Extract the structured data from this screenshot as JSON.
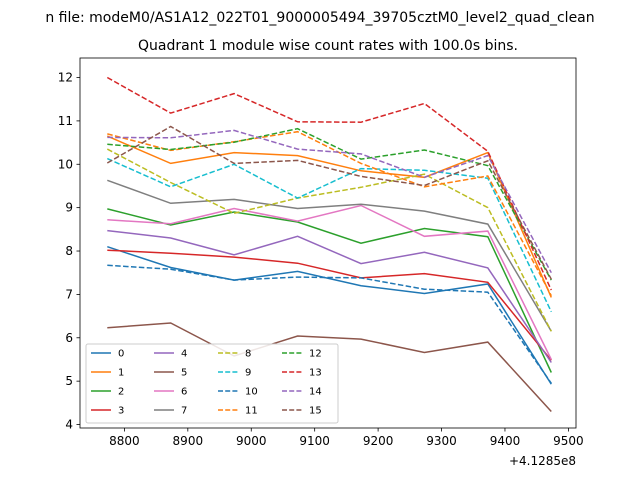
{
  "chart_data": {
    "type": "line",
    "suptitle": "n file: modeM0/AS1A12_022T01_9000005494_39705cztM0_level2_quad_clean",
    "title": "Quadrant 1 module wise count rates with 100.0s bins.",
    "x_offset_label": "+4.1285e8",
    "x": [
      8773,
      8873,
      8973,
      9073,
      9173,
      9273,
      9373,
      9473
    ],
    "xlim": [
      8730,
      9512
    ],
    "ylim": [
      3.92,
      12.45
    ],
    "xticks": [
      8800,
      8900,
      9000,
      9100,
      9200,
      9300,
      9400,
      9500
    ],
    "yticks": [
      4,
      5,
      6,
      7,
      8,
      9,
      10,
      11,
      12
    ],
    "grid": false,
    "legend_position": "lower-left",
    "series": [
      {
        "name": "0",
        "color": "#1f77b4",
        "dash": "solid",
        "values": [
          8.1,
          7.62,
          7.33,
          7.53,
          7.2,
          7.02,
          7.24,
          4.93
        ]
      },
      {
        "name": "1",
        "color": "#ff7f0e",
        "dash": "solid",
        "values": [
          10.65,
          10.02,
          10.27,
          10.2,
          9.85,
          9.7,
          10.27,
          6.93
        ]
      },
      {
        "name": "2",
        "color": "#2ca02c",
        "dash": "solid",
        "values": [
          8.97,
          8.6,
          8.9,
          8.67,
          8.18,
          8.52,
          8.33,
          5.2
        ]
      },
      {
        "name": "3",
        "color": "#d62728",
        "dash": "solid",
        "values": [
          8.02,
          7.95,
          7.86,
          7.72,
          7.38,
          7.48,
          7.28,
          5.48
        ]
      },
      {
        "name": "4",
        "color": "#9467bd",
        "dash": "solid",
        "values": [
          8.47,
          8.3,
          7.91,
          8.34,
          7.71,
          7.97,
          7.61,
          5.43
        ]
      },
      {
        "name": "5",
        "color": "#8c564b",
        "dash": "solid",
        "values": [
          6.23,
          6.34,
          5.58,
          6.04,
          5.97,
          5.66,
          5.9,
          4.3
        ]
      },
      {
        "name": "6",
        "color": "#e377c2",
        "dash": "solid",
        "values": [
          8.72,
          8.63,
          8.98,
          8.69,
          9.05,
          8.34,
          8.46,
          5.5
        ]
      },
      {
        "name": "7",
        "color": "#7f7f7f",
        "dash": "solid",
        "values": [
          9.63,
          9.1,
          9.19,
          8.98,
          9.08,
          8.92,
          8.62,
          6.15
        ]
      },
      {
        "name": "8",
        "color": "#bcbd22",
        "dash": "dashed",
        "values": [
          10.35,
          9.58,
          8.87,
          9.22,
          9.47,
          9.77,
          9.0,
          6.15
        ]
      },
      {
        "name": "9",
        "color": "#17becf",
        "dash": "dashed",
        "values": [
          10.13,
          9.48,
          10.0,
          9.22,
          9.9,
          9.86,
          9.68,
          6.6
        ]
      },
      {
        "name": "10",
        "color": "#1f77b4",
        "dash": "dashed",
        "values": [
          7.67,
          7.58,
          7.33,
          7.4,
          7.38,
          7.12,
          7.05,
          4.95
        ]
      },
      {
        "name": "11",
        "color": "#ff7f0e",
        "dash": "dashed",
        "values": [
          10.7,
          10.32,
          10.52,
          10.75,
          10.02,
          9.48,
          9.73,
          6.97
        ]
      },
      {
        "name": "12",
        "color": "#2ca02c",
        "dash": "dashed",
        "values": [
          10.46,
          10.34,
          10.51,
          10.82,
          10.12,
          10.33,
          9.97,
          7.33
        ]
      },
      {
        "name": "13",
        "color": "#d62728",
        "dash": "dashed",
        "values": [
          12.0,
          11.18,
          11.63,
          10.98,
          10.97,
          11.4,
          10.3,
          7.1
        ]
      },
      {
        "name": "14",
        "color": "#9467bd",
        "dash": "dashed",
        "values": [
          10.62,
          10.61,
          10.78,
          10.35,
          10.24,
          9.7,
          10.2,
          7.5
        ]
      },
      {
        "name": "15",
        "color": "#8c564b",
        "dash": "dashed",
        "values": [
          10.03,
          10.87,
          10.02,
          10.09,
          9.72,
          9.51,
          10.08,
          7.35
        ]
      }
    ]
  }
}
